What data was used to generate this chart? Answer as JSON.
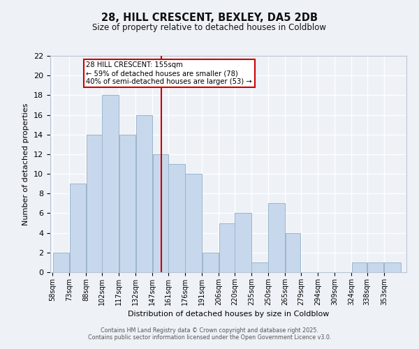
{
  "title": "28, HILL CRESCENT, BEXLEY, DA5 2DB",
  "subtitle": "Size of property relative to detached houses in Coldblow",
  "xlabel": "Distribution of detached houses by size in Coldblow",
  "ylabel": "Number of detached properties",
  "bin_labels": [
    "58sqm",
    "73sqm",
    "88sqm",
    "102sqm",
    "117sqm",
    "132sqm",
    "147sqm",
    "161sqm",
    "176sqm",
    "191sqm",
    "206sqm",
    "220sqm",
    "235sqm",
    "250sqm",
    "265sqm",
    "279sqm",
    "294sqm",
    "309sqm",
    "324sqm",
    "338sqm",
    "353sqm"
  ],
  "counts": [
    2,
    9,
    14,
    18,
    14,
    16,
    12,
    11,
    10,
    2,
    5,
    6,
    1,
    7,
    4,
    0,
    0,
    0,
    1,
    1,
    1
  ],
  "bar_color": "#c8d8ec",
  "bar_edge_color": "#9ab5cc",
  "marker_value": 155,
  "marker_line_color": "#cc0000",
  "annotation_line1": "28 HILL CRESCENT: 155sqm",
  "annotation_line2": "← 59% of detached houses are smaller (78)",
  "annotation_line3": "40% of semi-detached houses are larger (53) →",
  "annotation_box_color": "#ffffff",
  "annotation_box_edge_color": "#cc0000",
  "ylim": [
    0,
    22
  ],
  "yticks": [
    0,
    2,
    4,
    6,
    8,
    10,
    12,
    14,
    16,
    18,
    20,
    22
  ],
  "footer1": "Contains HM Land Registry data © Crown copyright and database right 2025.",
  "footer2": "Contains public sector information licensed under the Open Government Licence v3.0.",
  "background_color": "#eef2f7",
  "grid_color": "#ffffff",
  "bin_edges": [
    58,
    73,
    88,
    102,
    117,
    132,
    147,
    161,
    176,
    191,
    206,
    220,
    235,
    250,
    265,
    279,
    294,
    309,
    324,
    338,
    353,
    368
  ]
}
